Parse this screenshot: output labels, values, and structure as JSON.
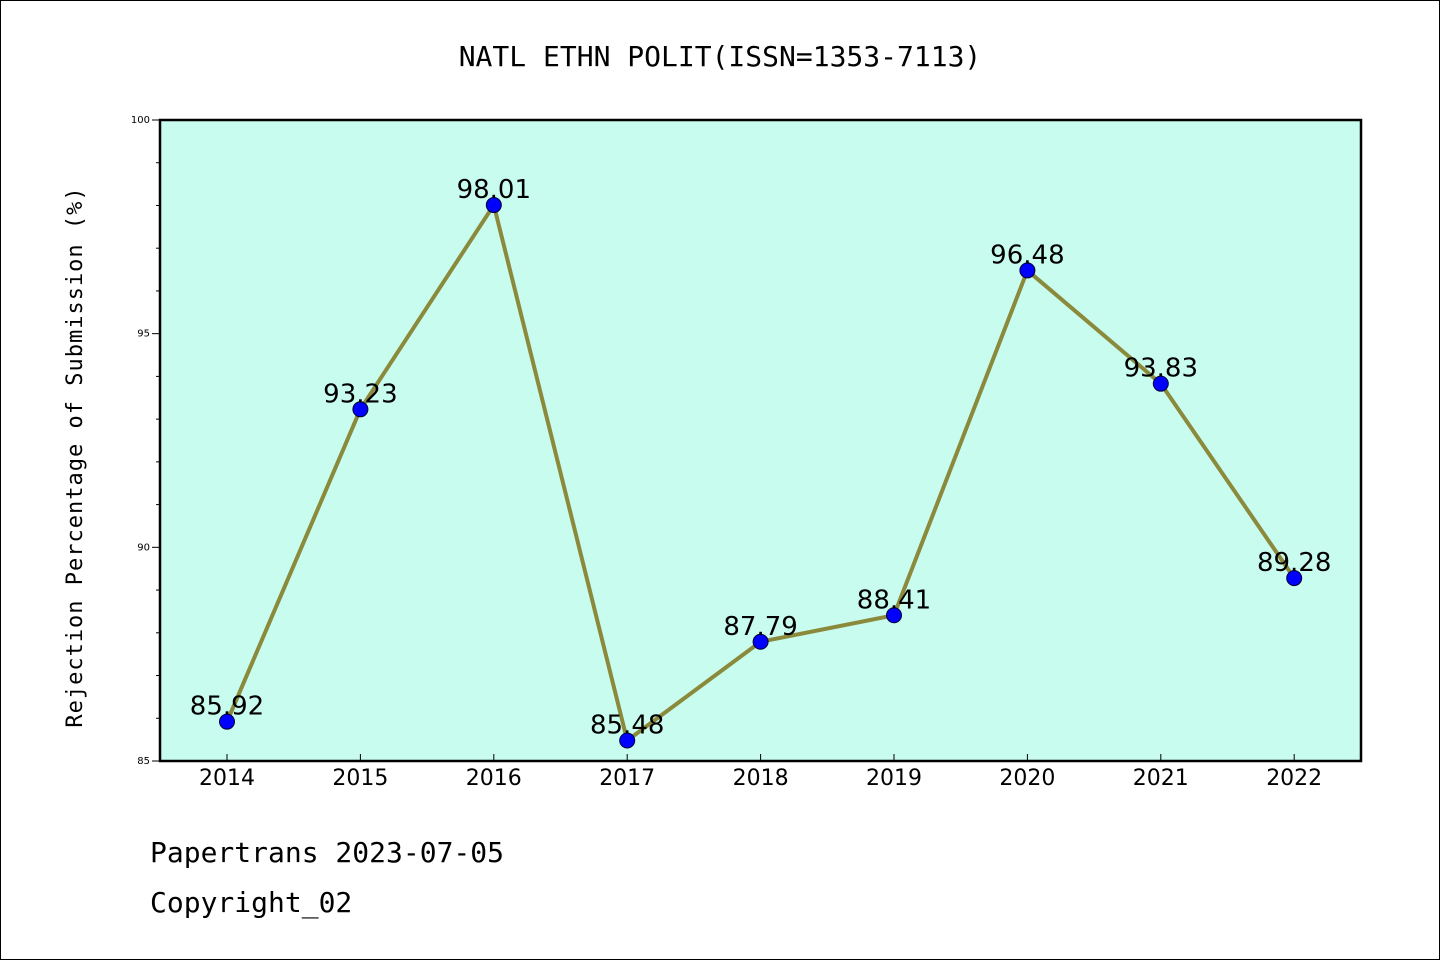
{
  "chart_data": {
    "type": "line",
    "title": "NATL ETHN POLIT(ISSN=1353-7113)",
    "ylabel": "Rejection Percentage of Submission (%)",
    "xlabel": "",
    "categories": [
      "2014",
      "2015",
      "2016",
      "2017",
      "2018",
      "2019",
      "2020",
      "2021",
      "2022"
    ],
    "values": [
      85.92,
      93.23,
      98.01,
      85.48,
      87.79,
      88.41,
      96.48,
      93.83,
      89.28
    ],
    "data_labels": [
      "85.92",
      "93.23",
      "98.01",
      "85.48",
      "87.79",
      "88.41",
      "96.48",
      "93.83",
      "89.28"
    ],
    "ylim": [
      85,
      100
    ],
    "yticks": [
      "85",
      "90",
      "95",
      "100"
    ],
    "grid": false,
    "colors": {
      "plot_background": "#c8fcee",
      "line": "#8b8a3c",
      "marker": "#0000ff"
    }
  },
  "footer": {
    "line1": "Papertrans 2023-07-05",
    "line2": "Copyright_02"
  }
}
